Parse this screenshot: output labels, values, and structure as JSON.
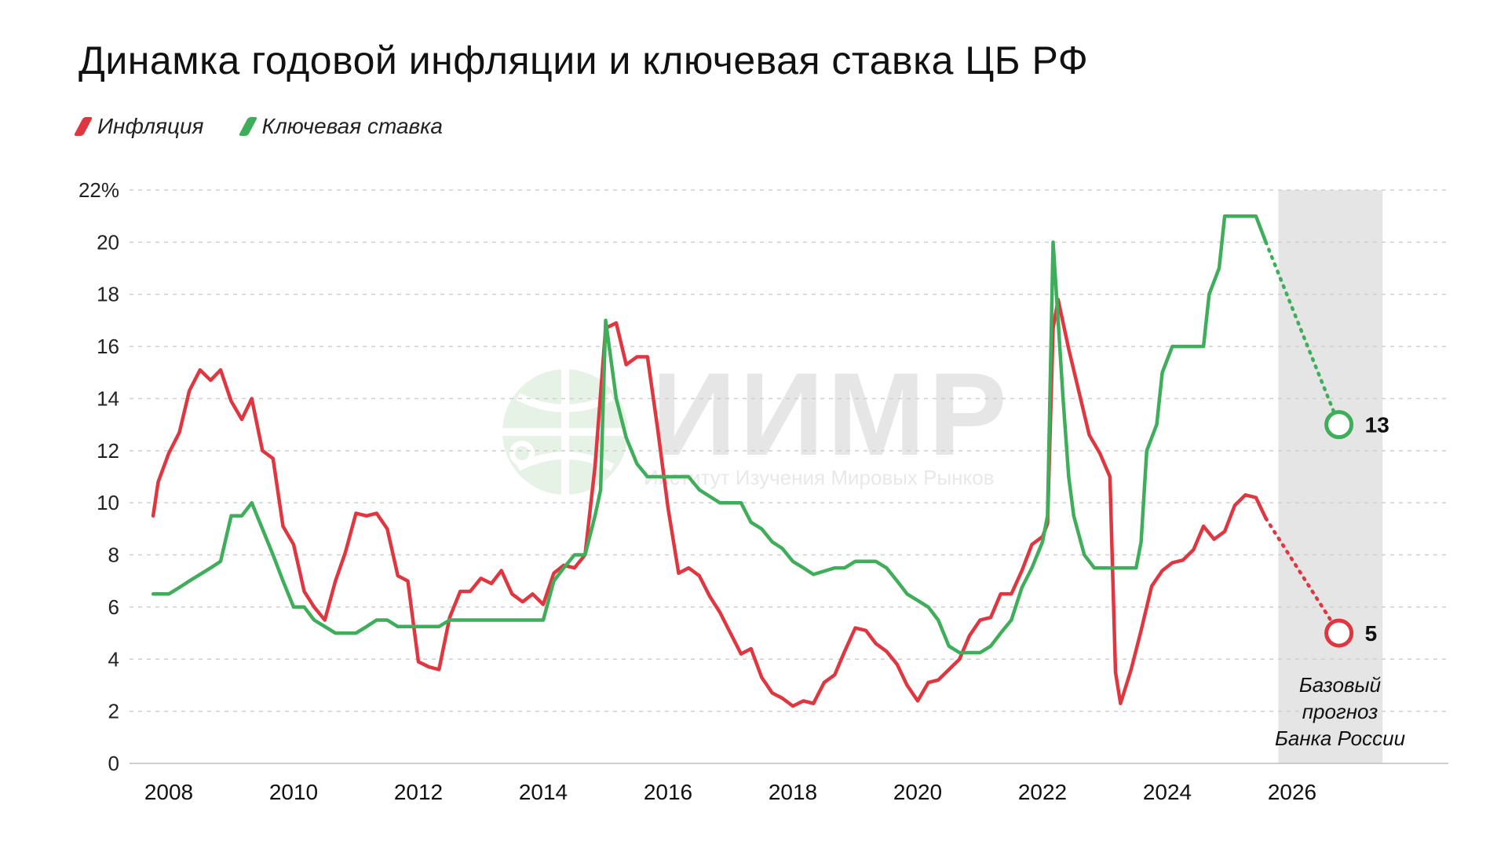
{
  "title": "Динамка годовой инфляции и ключевая ставка ЦБ РФ",
  "legend": [
    {
      "label": "Инфляция",
      "color": "#e0363f"
    },
    {
      "label": "Ключевая ставка",
      "color": "#3fae5a"
    }
  ],
  "watermark": {
    "name": "ИИМР",
    "subtitle": "Институт Изучения Мировых Рынков"
  },
  "forecast_note": [
    "Базовый",
    "прогноз",
    "Банка России"
  ],
  "chart_data": {
    "type": "line",
    "title": "Динамка годовой инфляции и ключевая ставка ЦБ РФ",
    "xlabel": "",
    "ylabel": "",
    "xlim": [
      2007.5,
      2028.8
    ],
    "ylim": [
      0,
      22
    ],
    "y_ticks": [
      "22%",
      "20",
      "18",
      "16",
      "14",
      "12",
      "10",
      "8",
      "6",
      "4",
      "2",
      "0"
    ],
    "x_ticks": [
      "2008",
      "2010",
      "2012",
      "2014",
      "2016",
      "2018",
      "2020",
      "2022",
      "2024",
      "2026"
    ],
    "grid": true,
    "legend_position": "top-left",
    "forecast_region": [
      2026.75,
      2028.5
    ],
    "series": [
      {
        "name": "Инфляция",
        "color": "#e0363f",
        "points": [
          [
            2007.75,
            9.5
          ],
          [
            2007.83,
            10.8
          ],
          [
            2008.0,
            11.9
          ],
          [
            2008.17,
            12.7
          ],
          [
            2008.33,
            14.3
          ],
          [
            2008.5,
            15.1
          ],
          [
            2008.67,
            14.7
          ],
          [
            2008.83,
            15.1
          ],
          [
            2009.0,
            13.9
          ],
          [
            2009.17,
            13.2
          ],
          [
            2009.33,
            14.0
          ],
          [
            2009.5,
            12.0
          ],
          [
            2009.67,
            11.7
          ],
          [
            2009.83,
            9.1
          ],
          [
            2010.0,
            8.4
          ],
          [
            2010.17,
            6.6
          ],
          [
            2010.33,
            6.0
          ],
          [
            2010.5,
            5.5
          ],
          [
            2010.67,
            7.0
          ],
          [
            2010.83,
            8.1
          ],
          [
            2011.0,
            9.6
          ],
          [
            2011.17,
            9.5
          ],
          [
            2011.33,
            9.6
          ],
          [
            2011.5,
            9.0
          ],
          [
            2011.67,
            7.2
          ],
          [
            2011.83,
            7.0
          ],
          [
            2012.0,
            3.9
          ],
          [
            2012.17,
            3.7
          ],
          [
            2012.33,
            3.6
          ],
          [
            2012.5,
            5.6
          ],
          [
            2012.67,
            6.6
          ],
          [
            2012.83,
            6.6
          ],
          [
            2013.0,
            7.1
          ],
          [
            2013.17,
            6.9
          ],
          [
            2013.33,
            7.4
          ],
          [
            2013.5,
            6.5
          ],
          [
            2013.67,
            6.2
          ],
          [
            2013.83,
            6.5
          ],
          [
            2014.0,
            6.1
          ],
          [
            2014.17,
            7.3
          ],
          [
            2014.33,
            7.6
          ],
          [
            2014.5,
            7.5
          ],
          [
            2014.67,
            8.0
          ],
          [
            2014.83,
            11.4
          ],
          [
            2015.0,
            16.7
          ],
          [
            2015.17,
            16.9
          ],
          [
            2015.33,
            15.3
          ],
          [
            2015.5,
            15.6
          ],
          [
            2015.67,
            15.6
          ],
          [
            2015.83,
            12.9
          ],
          [
            2016.0,
            9.8
          ],
          [
            2016.17,
            7.3
          ],
          [
            2016.33,
            7.5
          ],
          [
            2016.5,
            7.2
          ],
          [
            2016.67,
            6.4
          ],
          [
            2016.83,
            5.8
          ],
          [
            2017.0,
            5.0
          ],
          [
            2017.17,
            4.2
          ],
          [
            2017.33,
            4.4
          ],
          [
            2017.5,
            3.3
          ],
          [
            2017.67,
            2.7
          ],
          [
            2017.83,
            2.5
          ],
          [
            2018.0,
            2.2
          ],
          [
            2018.17,
            2.4
          ],
          [
            2018.33,
            2.3
          ],
          [
            2018.5,
            3.1
          ],
          [
            2018.67,
            3.4
          ],
          [
            2018.83,
            4.3
          ],
          [
            2019.0,
            5.2
          ],
          [
            2019.17,
            5.1
          ],
          [
            2019.33,
            4.6
          ],
          [
            2019.5,
            4.3
          ],
          [
            2019.67,
            3.8
          ],
          [
            2019.83,
            3.0
          ],
          [
            2020.0,
            2.4
          ],
          [
            2020.17,
            3.1
          ],
          [
            2020.33,
            3.2
          ],
          [
            2020.5,
            3.6
          ],
          [
            2020.67,
            4.0
          ],
          [
            2020.83,
            4.9
          ],
          [
            2021.0,
            5.5
          ],
          [
            2021.17,
            5.6
          ],
          [
            2021.33,
            6.5
          ],
          [
            2021.5,
            6.5
          ],
          [
            2021.67,
            7.4
          ],
          [
            2021.83,
            8.4
          ],
          [
            2022.0,
            8.7
          ],
          [
            2022.08,
            9.2
          ],
          [
            2022.17,
            16.7
          ],
          [
            2022.25,
            17.8
          ],
          [
            2022.42,
            15.9
          ],
          [
            2022.58,
            14.3
          ],
          [
            2022.75,
            12.6
          ],
          [
            2022.92,
            11.9
          ],
          [
            2023.08,
            11.0
          ],
          [
            2023.17,
            3.5
          ],
          [
            2023.25,
            2.3
          ],
          [
            2023.42,
            3.6
          ],
          [
            2023.58,
            5.1
          ],
          [
            2023.75,
            6.8
          ],
          [
            2023.92,
            7.4
          ],
          [
            2024.08,
            7.7
          ],
          [
            2024.25,
            7.8
          ],
          [
            2024.42,
            8.2
          ],
          [
            2024.58,
            9.1
          ],
          [
            2024.75,
            8.6
          ],
          [
            2024.92,
            8.9
          ],
          [
            2025.08,
            9.9
          ],
          [
            2025.25,
            10.3
          ],
          [
            2025.42,
            10.2
          ],
          [
            2025.58,
            9.4
          ]
        ],
        "forecast": [
          [
            2025.58,
            9.4
          ],
          [
            2026.75,
            5
          ]
        ],
        "forecast_label": "5"
      },
      {
        "name": "Ключевая ставка",
        "color": "#3fae5a",
        "points": [
          [
            2007.75,
            6.5
          ],
          [
            2008.0,
            6.5
          ],
          [
            2008.17,
            6.75
          ],
          [
            2008.33,
            7.0
          ],
          [
            2008.5,
            7.25
          ],
          [
            2008.67,
            7.5
          ],
          [
            2008.83,
            7.75
          ],
          [
            2009.0,
            9.5
          ],
          [
            2009.17,
            9.5
          ],
          [
            2009.33,
            10.0
          ],
          [
            2009.5,
            9.0
          ],
          [
            2009.67,
            8.0
          ],
          [
            2009.83,
            7.0
          ],
          [
            2010.0,
            6.0
          ],
          [
            2010.17,
            6.0
          ],
          [
            2010.33,
            5.5
          ],
          [
            2010.5,
            5.25
          ],
          [
            2010.67,
            5.0
          ],
          [
            2010.83,
            5.0
          ],
          [
            2011.0,
            5.0
          ],
          [
            2011.17,
            5.25
          ],
          [
            2011.33,
            5.5
          ],
          [
            2011.5,
            5.5
          ],
          [
            2011.67,
            5.25
          ],
          [
            2011.83,
            5.25
          ],
          [
            2012.0,
            5.25
          ],
          [
            2012.17,
            5.25
          ],
          [
            2012.33,
            5.25
          ],
          [
            2012.5,
            5.5
          ],
          [
            2013.0,
            5.5
          ],
          [
            2013.5,
            5.5
          ],
          [
            2013.83,
            5.5
          ],
          [
            2014.0,
            5.5
          ],
          [
            2014.17,
            7.0
          ],
          [
            2014.33,
            7.5
          ],
          [
            2014.5,
            8.0
          ],
          [
            2014.67,
            8.0
          ],
          [
            2014.83,
            9.5
          ],
          [
            2014.92,
            10.5
          ],
          [
            2015.0,
            17.0
          ],
          [
            2015.17,
            14.0
          ],
          [
            2015.33,
            12.5
          ],
          [
            2015.5,
            11.5
          ],
          [
            2015.67,
            11.0
          ],
          [
            2015.83,
            11.0
          ],
          [
            2016.0,
            11.0
          ],
          [
            2016.33,
            11.0
          ],
          [
            2016.5,
            10.5
          ],
          [
            2016.83,
            10.0
          ],
          [
            2017.17,
            10.0
          ],
          [
            2017.33,
            9.25
          ],
          [
            2017.5,
            9.0
          ],
          [
            2017.67,
            8.5
          ],
          [
            2017.83,
            8.25
          ],
          [
            2018.0,
            7.75
          ],
          [
            2018.17,
            7.5
          ],
          [
            2018.33,
            7.25
          ],
          [
            2018.67,
            7.5
          ],
          [
            2018.83,
            7.5
          ],
          [
            2019.0,
            7.75
          ],
          [
            2019.33,
            7.75
          ],
          [
            2019.5,
            7.5
          ],
          [
            2019.67,
            7.0
          ],
          [
            2019.83,
            6.5
          ],
          [
            2020.0,
            6.25
          ],
          [
            2020.17,
            6.0
          ],
          [
            2020.33,
            5.5
          ],
          [
            2020.5,
            4.5
          ],
          [
            2020.67,
            4.25
          ],
          [
            2021.0,
            4.25
          ],
          [
            2021.17,
            4.5
          ],
          [
            2021.33,
            5.0
          ],
          [
            2021.5,
            5.5
          ],
          [
            2021.67,
            6.75
          ],
          [
            2021.83,
            7.5
          ],
          [
            2022.0,
            8.5
          ],
          [
            2022.08,
            9.5
          ],
          [
            2022.17,
            20.0
          ],
          [
            2022.25,
            17.0
          ],
          [
            2022.33,
            14.0
          ],
          [
            2022.42,
            11.0
          ],
          [
            2022.5,
            9.5
          ],
          [
            2022.67,
            8.0
          ],
          [
            2022.83,
            7.5
          ],
          [
            2023.0,
            7.5
          ],
          [
            2023.33,
            7.5
          ],
          [
            2023.5,
            7.5
          ],
          [
            2023.58,
            8.5
          ],
          [
            2023.67,
            12.0
          ],
          [
            2023.83,
            13.0
          ],
          [
            2023.92,
            15.0
          ],
          [
            2024.08,
            16.0
          ],
          [
            2024.42,
            16.0
          ],
          [
            2024.58,
            16.0
          ],
          [
            2024.67,
            18.0
          ],
          [
            2024.83,
            19.0
          ],
          [
            2024.92,
            21.0
          ],
          [
            2025.42,
            21.0
          ],
          [
            2025.58,
            20.0
          ]
        ],
        "forecast": [
          [
            2025.58,
            20.0
          ],
          [
            2026.75,
            13
          ]
        ],
        "forecast_label": "13"
      }
    ]
  }
}
